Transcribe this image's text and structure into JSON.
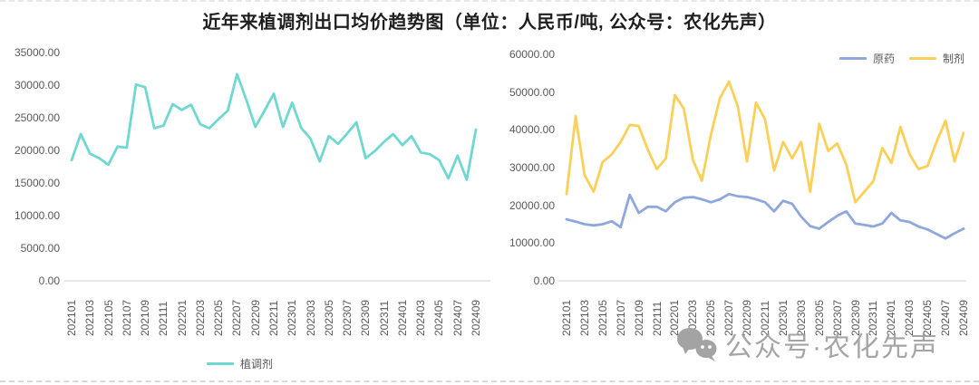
{
  "title": "近年来植调剂出口均价趋势图（单位：人民币/吨, 公众号：农化先声）",
  "watermark": {
    "icon": "wechat-chat-bubbles-icon",
    "text": "公众号·农化先声"
  },
  "colors": {
    "axis_text": "#595959",
    "axis_line": "#D9D9D9",
    "watermark_gray": "#A3A3A3"
  },
  "chart_data": [
    {
      "type": "line",
      "name": "plant-regulator-export-avg-price",
      "title": "近年来植调剂出口均价趋势图",
      "unit": "人民币/吨",
      "grid": false,
      "legend_position": "bottom",
      "ylim": [
        0,
        35000
      ],
      "y_tick_step": 5000,
      "y_tick_labels": [
        "0.00",
        "5000.00",
        "10000.00",
        "15000.00",
        "20000.00",
        "25000.00",
        "30000.00",
        "35000.00"
      ],
      "x_tick_every": 2,
      "x_tick_labels": [
        "202101",
        "202103",
        "202105",
        "202107",
        "202109",
        "202111",
        "202201",
        "202203",
        "202205",
        "202207",
        "202209",
        "202211",
        "202301",
        "202303",
        "202305",
        "202307",
        "202309",
        "202311",
        "202401",
        "202403",
        "202405",
        "202407",
        "202409"
      ],
      "categories": [
        "202101",
        "202102",
        "202103",
        "202104",
        "202105",
        "202106",
        "202107",
        "202108",
        "202109",
        "202110",
        "202111",
        "202112",
        "202201",
        "202202",
        "202203",
        "202204",
        "202205",
        "202206",
        "202207",
        "202208",
        "202209",
        "202210",
        "202211",
        "202212",
        "202301",
        "202302",
        "202303",
        "202304",
        "202305",
        "202306",
        "202307",
        "202308",
        "202309",
        "202310",
        "202311",
        "202312",
        "202401",
        "202402",
        "202403",
        "202404",
        "202405",
        "202406",
        "202407",
        "202408",
        "202409"
      ],
      "series": [
        {
          "name": "植调剂",
          "color": "#6FD8D0",
          "values": [
            18500,
            22500,
            19500,
            18800,
            17800,
            20600,
            20400,
            30100,
            29700,
            23400,
            23800,
            27100,
            26200,
            27000,
            24000,
            23400,
            24800,
            26100,
            31700,
            27800,
            23600,
            26100,
            28700,
            23600,
            27300,
            23400,
            21800,
            18300,
            22200,
            21000,
            22600,
            24300,
            18800,
            19900,
            21300,
            22500,
            20800,
            22200,
            19700,
            19400,
            18500,
            15700,
            19200,
            15500,
            23200
          ]
        }
      ]
    },
    {
      "type": "line",
      "name": "technical-vs-formulation-export-avg-price",
      "title": "原药与制剂出口均价",
      "unit": "人民币/吨",
      "grid": false,
      "legend_position": "top-right",
      "ylim": [
        0,
        60000
      ],
      "y_tick_step": 10000,
      "y_tick_labels": [
        "0.00",
        "10000.00",
        "20000.00",
        "30000.00",
        "40000.00",
        "50000.00",
        "60000.00"
      ],
      "x_tick_every": 2,
      "x_tick_labels": [
        "202101",
        "202103",
        "202105",
        "202107",
        "202109",
        "202111",
        "202201",
        "202203",
        "202205",
        "202207",
        "202209",
        "202211",
        "202301",
        "202303",
        "202305",
        "202307",
        "202309",
        "202311",
        "202401",
        "202403",
        "202405",
        "202407",
        "202409"
      ],
      "categories": [
        "202101",
        "202102",
        "202103",
        "202104",
        "202105",
        "202106",
        "202107",
        "202108",
        "202109",
        "202110",
        "202111",
        "202112",
        "202201",
        "202202",
        "202203",
        "202204",
        "202205",
        "202206",
        "202207",
        "202208",
        "202209",
        "202210",
        "202211",
        "202212",
        "202301",
        "202302",
        "202303",
        "202304",
        "202305",
        "202306",
        "202307",
        "202308",
        "202309",
        "202310",
        "202311",
        "202312",
        "202401",
        "202402",
        "202403",
        "202404",
        "202405",
        "202406",
        "202407",
        "202408",
        "202409"
      ],
      "series": [
        {
          "name": "原药",
          "color": "#8FA8DC",
          "values": [
            16300,
            15700,
            15000,
            14700,
            15000,
            15800,
            14200,
            22800,
            18000,
            19600,
            19600,
            18400,
            20800,
            22000,
            22200,
            21600,
            20800,
            21600,
            23000,
            22400,
            22200,
            21600,
            20800,
            18400,
            21200,
            20400,
            17000,
            14500,
            13800,
            15600,
            17200,
            18400,
            15200,
            14800,
            14400,
            15200,
            18000,
            16000,
            15600,
            14400,
            13600,
            12400,
            11200,
            12600,
            13800
          ]
        },
        {
          "name": "制剂",
          "color": "#FBD05A",
          "values": [
            23000,
            43600,
            28000,
            23600,
            31500,
            33500,
            36800,
            41300,
            41000,
            34800,
            29600,
            32400,
            49200,
            45600,
            32000,
            26500,
            38800,
            48400,
            52800,
            46000,
            31600,
            47200,
            42800,
            29200,
            36800,
            32400,
            36800,
            23600,
            41600,
            34400,
            36400,
            30800,
            20800,
            23600,
            26400,
            35200,
            31200,
            40800,
            33600,
            29600,
            30400,
            36800,
            42400,
            31600,
            39200
          ]
        }
      ]
    }
  ]
}
